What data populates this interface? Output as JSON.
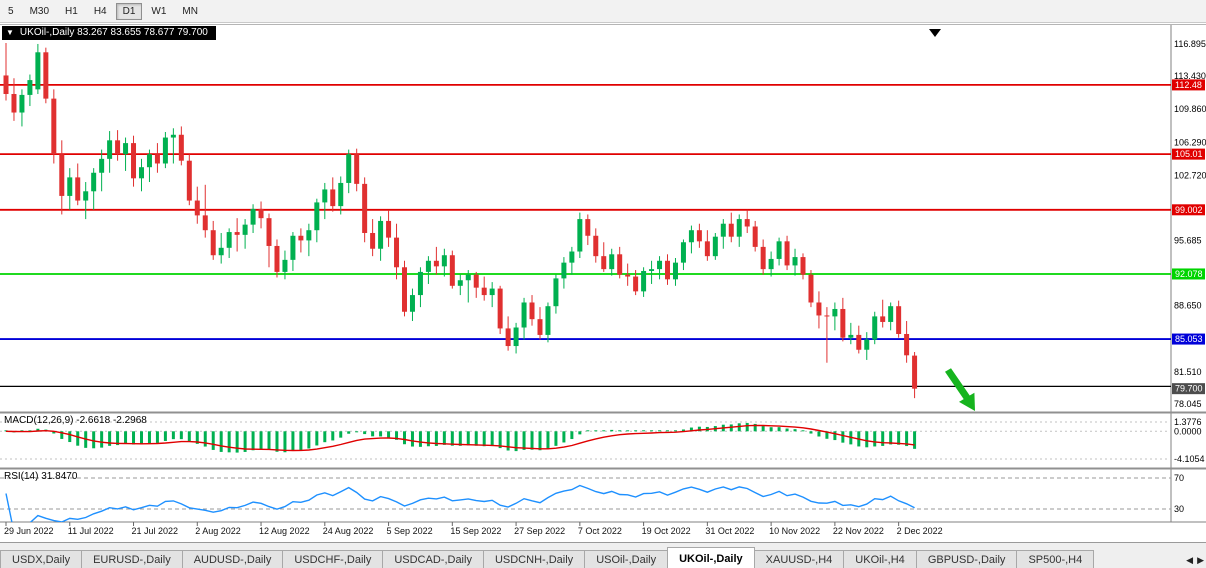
{
  "toolbar": {
    "timeframes": [
      {
        "label": "5",
        "active": false
      },
      {
        "label": "M30",
        "active": false
      },
      {
        "label": "H1",
        "active": false
      },
      {
        "label": "H4",
        "active": false
      },
      {
        "label": "D1",
        "active": true
      },
      {
        "label": "W1",
        "active": false
      },
      {
        "label": "MN",
        "active": false
      }
    ]
  },
  "chart": {
    "title": "UKOil-,Daily  83.267 83.655 78.677 79.700"
  },
  "indicators": {
    "macd_label": "MACD(12,26,9) -2.6618 -2.2968",
    "rsi_label": "RSI(14) 31.8470",
    "macd_ticks": [
      {
        "v": 1.3776,
        "label": "1.3776"
      },
      {
        "v": 0,
        "label": "0.0000"
      },
      {
        "v": -4.1054,
        "label": "-4.1054"
      }
    ],
    "rsi_ticks": [
      {
        "v": 70,
        "label": "70"
      },
      {
        "v": 30,
        "label": "30"
      }
    ],
    "rsi_levels": [
      70,
      30
    ]
  },
  "tabs": {
    "items": [
      "USDX,Daily",
      "EURUSD-,Daily",
      "AUDUSD-,Daily",
      "USDCHF-,Daily",
      "USDCAD-,Daily",
      "USDCNH-,Daily",
      "USOil-,Daily",
      "UKOil-,Daily",
      "XAUUSD-,H4",
      "UKOil-,H4",
      "GBPUSD-,Daily",
      "SP500-,H4"
    ],
    "active": "UKOil-,Daily",
    "scroll_left_icon": "◀",
    "scroll_right_icon": "▶"
  },
  "chart_data": {
    "type": "candlestick",
    "symbol": "UKOil-",
    "timeframe": "Daily",
    "last_ohlc": {
      "open": "83.267",
      "high": "83.655",
      "low": "78.677",
      "close": "79.700"
    },
    "colors": {
      "up": "#00b050",
      "down": "#e03030",
      "macd_histogram": "#00b050",
      "macd_signal": "#e00000",
      "rsi_line": "#1e90ff",
      "arrow": "#16b41e",
      "level_red": "#e00000",
      "level_green": "#00d400",
      "level_blue": "#0000d8",
      "support_black": "#000000",
      "bid_bg": "#4d4d4d"
    },
    "y_ticks": [
      116.895,
      113.43,
      109.86,
      106.29,
      102.72,
      95.685,
      88.65,
      81.51,
      78.045
    ],
    "horizontal_lines": [
      {
        "price": 112.48,
        "label": "112.48",
        "color": "#e00000"
      },
      {
        "price": 105.01,
        "label": "105.01",
        "color": "#e00000"
      },
      {
        "price": 99.002,
        "label": "99.002",
        "color": "#e00000"
      },
      {
        "price": 92.078,
        "label": "92.078",
        "color": "#00d400"
      },
      {
        "price": 85.053,
        "label": "85.053",
        "color": "#0000d8"
      },
      {
        "price": 79.95,
        "label": "",
        "color": "#000000"
      }
    ],
    "bid": {
      "price": 79.7,
      "label": "79.700"
    },
    "x_labels": [
      {
        "i": 0,
        "label": "29 Jun 2022"
      },
      {
        "i": 8,
        "label": "11 Jul 2022"
      },
      {
        "i": 16,
        "label": "21 Jul 2022"
      },
      {
        "i": 24,
        "label": "2 Aug 2022"
      },
      {
        "i": 32,
        "label": "12 Aug 2022"
      },
      {
        "i": 40,
        "label": "24 Aug 2022"
      },
      {
        "i": 48,
        "label": "5 Sep 2022"
      },
      {
        "i": 56,
        "label": "15 Sep 2022"
      },
      {
        "i": 64,
        "label": "27 Sep 2022"
      },
      {
        "i": 72,
        "label": "7 Oct 2022"
      },
      {
        "i": 80,
        "label": "19 Oct 2022"
      },
      {
        "i": 88,
        "label": "31 Oct 2022"
      },
      {
        "i": 96,
        "label": "10 Nov 2022"
      },
      {
        "i": 104,
        "label": "22 Nov 2022"
      },
      {
        "i": 112,
        "label": "2 Dec 2022"
      }
    ],
    "macd_summary": {
      "name": "MACD",
      "params": "12,26,9",
      "values": [
        -2.6618,
        -2.2968
      ]
    },
    "rsi_summary": {
      "name": "RSI",
      "params": "14",
      "value": 31.847
    },
    "candles": [
      [
        113.5,
        117.0,
        110.8,
        111.5
      ],
      [
        111.5,
        113.2,
        108.6,
        109.5
      ],
      [
        109.5,
        112.0,
        108.0,
        111.4
      ],
      [
        111.4,
        113.6,
        110.2,
        113.0
      ],
      [
        112.0,
        116.9,
        111.5,
        116.0
      ],
      [
        116.0,
        116.5,
        110.5,
        111.0
      ],
      [
        111.0,
        112.0,
        104.0,
        105.0
      ],
      [
        105.0,
        106.5,
        98.5,
        100.5
      ],
      [
        100.5,
        103.5,
        99.0,
        102.5
      ],
      [
        102.5,
        104.0,
        99.5,
        100.0
      ],
      [
        100.0,
        102.0,
        98.0,
        101.0
      ],
      [
        101.0,
        103.5,
        99.0,
        103.0
      ],
      [
        103.0,
        105.5,
        101.0,
        104.5
      ],
      [
        104.5,
        107.5,
        103.0,
        106.5
      ],
      [
        106.5,
        107.6,
        104.3,
        105.0
      ],
      [
        105.0,
        106.8,
        103.2,
        106.2
      ],
      [
        106.2,
        107.0,
        101.5,
        102.4
      ],
      [
        102.4,
        104.5,
        101.0,
        103.6
      ],
      [
        103.6,
        105.5,
        102.0,
        105.0
      ],
      [
        105.0,
        106.2,
        103.0,
        104.0
      ],
      [
        104.0,
        107.4,
        103.5,
        106.8
      ],
      [
        106.8,
        107.8,
        104.0,
        107.1
      ],
      [
        107.1,
        108.0,
        103.8,
        104.3
      ],
      [
        104.3,
        105.0,
        99.5,
        100.0
      ],
      [
        100.0,
        101.5,
        97.5,
        98.4
      ],
      [
        98.4,
        101.7,
        96.0,
        96.8
      ],
      [
        96.8,
        97.8,
        93.6,
        94.1
      ],
      [
        94.1,
        96.5,
        93.2,
        94.9
      ],
      [
        94.9,
        97.0,
        93.8,
        96.6
      ],
      [
        96.6,
        98.1,
        94.5,
        96.3
      ],
      [
        96.3,
        98.0,
        94.8,
        97.4
      ],
      [
        97.4,
        99.6,
        96.5,
        99.1
      ],
      [
        99.1,
        99.9,
        97.0,
        98.1
      ],
      [
        98.1,
        98.6,
        92.8,
        95.1
      ],
      [
        95.1,
        95.8,
        91.7,
        92.3
      ],
      [
        92.3,
        94.6,
        91.5,
        93.6
      ],
      [
        93.6,
        96.6,
        92.4,
        96.2
      ],
      [
        96.2,
        97.0,
        94.4,
        95.7
      ],
      [
        95.7,
        97.5,
        94.0,
        96.8
      ],
      [
        96.8,
        100.2,
        95.5,
        99.8
      ],
      [
        99.8,
        101.9,
        98.0,
        101.2
      ],
      [
        101.2,
        102.5,
        98.8,
        99.4
      ],
      [
        99.4,
        102.6,
        98.5,
        101.9
      ],
      [
        101.9,
        105.5,
        100.8,
        105.0
      ],
      [
        105.0,
        105.6,
        101.0,
        101.8
      ],
      [
        101.8,
        102.5,
        95.5,
        96.5
      ],
      [
        96.5,
        98.0,
        94.0,
        94.8
      ],
      [
        94.8,
        98.3,
        93.5,
        97.8
      ],
      [
        97.8,
        98.9,
        95.0,
        96.0
      ],
      [
        96.0,
        97.5,
        91.5,
        92.8
      ],
      [
        92.8,
        93.5,
        87.5,
        88.0
      ],
      [
        88.0,
        90.5,
        87.0,
        89.8
      ],
      [
        89.8,
        92.8,
        88.5,
        92.3
      ],
      [
        92.3,
        94.0,
        91.0,
        93.5
      ],
      [
        93.5,
        95.0,
        92.0,
        92.9
      ],
      [
        92.9,
        94.8,
        91.8,
        94.1
      ],
      [
        94.1,
        94.6,
        90.5,
        90.8
      ],
      [
        90.8,
        92.0,
        89.8,
        91.4
      ],
      [
        91.4,
        92.5,
        89.0,
        92.0
      ],
      [
        92.0,
        92.3,
        89.5,
        90.6
      ],
      [
        90.6,
        91.8,
        89.2,
        89.8
      ],
      [
        89.8,
        91.2,
        88.5,
        90.5
      ],
      [
        90.5,
        90.8,
        85.6,
        86.2
      ],
      [
        86.2,
        87.5,
        83.8,
        84.3
      ],
      [
        84.3,
        86.8,
        83.5,
        86.3
      ],
      [
        86.3,
        89.5,
        85.0,
        89.0
      ],
      [
        89.0,
        89.8,
        86.5,
        87.2
      ],
      [
        87.2,
        88.5,
        85.0,
        85.5
      ],
      [
        85.5,
        89.0,
        84.7,
        88.6
      ],
      [
        88.6,
        92.0,
        87.8,
        91.6
      ],
      [
        91.6,
        93.9,
        90.5,
        93.3
      ],
      [
        93.3,
        95.0,
        92.0,
        94.5
      ],
      [
        94.5,
        98.7,
        93.8,
        98.0
      ],
      [
        98.0,
        98.5,
        95.2,
        96.2
      ],
      [
        96.2,
        97.0,
        93.3,
        94.0
      ],
      [
        94.0,
        95.5,
        92.3,
        92.6
      ],
      [
        92.6,
        94.8,
        91.9,
        94.2
      ],
      [
        94.2,
        95.0,
        91.6,
        92.0
      ],
      [
        92.0,
        93.2,
        90.8,
        91.8
      ],
      [
        91.8,
        92.5,
        89.8,
        90.2
      ],
      [
        90.2,
        92.8,
        89.6,
        92.4
      ],
      [
        92.4,
        93.5,
        91.0,
        92.6
      ],
      [
        92.6,
        94.0,
        91.5,
        93.5
      ],
      [
        93.5,
        94.2,
        90.9,
        91.5
      ],
      [
        91.5,
        93.8,
        90.8,
        93.3
      ],
      [
        93.3,
        95.8,
        92.5,
        95.5
      ],
      [
        95.5,
        97.3,
        94.3,
        96.8
      ],
      [
        96.8,
        97.5,
        94.9,
        95.6
      ],
      [
        95.6,
        96.8,
        93.5,
        94.0
      ],
      [
        94.0,
        96.5,
        93.6,
        96.1
      ],
      [
        96.1,
        98.0,
        94.8,
        97.5
      ],
      [
        97.5,
        98.7,
        95.5,
        96.1
      ],
      [
        96.1,
        98.5,
        95.0,
        98.0
      ],
      [
        98.0,
        99.0,
        96.5,
        97.2
      ],
      [
        97.2,
        97.8,
        94.5,
        95.0
      ],
      [
        95.0,
        95.8,
        92.0,
        92.6
      ],
      [
        92.6,
        94.5,
        91.8,
        93.7
      ],
      [
        93.7,
        96.0,
        93.0,
        95.6
      ],
      [
        95.6,
        96.2,
        92.5,
        93.0
      ],
      [
        93.0,
        94.8,
        91.9,
        93.9
      ],
      [
        93.9,
        94.3,
        91.5,
        92.0
      ],
      [
        92.0,
        92.5,
        88.5,
        89.0
      ],
      [
        89.0,
        90.2,
        86.2,
        87.6
      ],
      [
        87.6,
        88.5,
        82.5,
        87.5
      ],
      [
        87.5,
        89.0,
        86.0,
        88.3
      ],
      [
        88.3,
        89.5,
        84.8,
        85.2
      ],
      [
        85.2,
        86.8,
        84.5,
        85.5
      ],
      [
        85.5,
        86.5,
        83.5,
        83.9
      ],
      [
        83.9,
        85.8,
        82.8,
        85.0
      ],
      [
        85.0,
        88.0,
        84.5,
        87.5
      ],
      [
        87.5,
        89.3,
        86.3,
        86.9
      ],
      [
        86.9,
        89.0,
        86.0,
        88.6
      ],
      [
        88.6,
        89.2,
        85.2,
        85.6
      ],
      [
        85.6,
        87.0,
        82.5,
        83.3
      ],
      [
        83.267,
        83.655,
        78.677,
        79.7
      ]
    ]
  }
}
